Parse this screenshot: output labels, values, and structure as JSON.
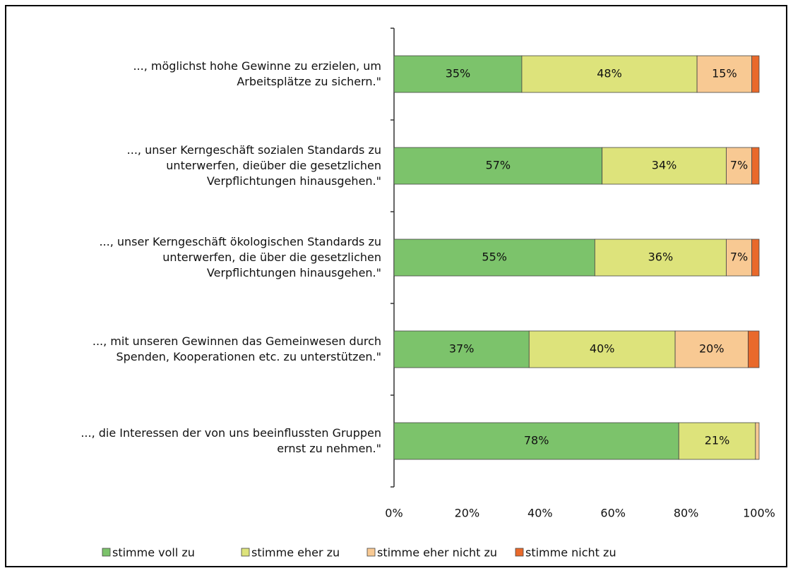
{
  "chart_data": {
    "type": "stacked_barh",
    "categories": [
      "..., möglichst hohe Gewinne zu erzielen, um\nArbeitsplätze zu sichern.\"",
      "..., unser Kerngeschäft sozialen Standards zu\nunterwerfen, dieüber die gesetzlichen\nVerpflichtungen hinausgehen.\"",
      "..., unser Kerngeschäft ökologischen Standards zu\nunterwerfen, die über die gesetzlichen\nVerpflichtungen hinausgehen.\"",
      "..., mit unseren Gewinnen das Gemeinwesen durch\nSpenden, Kooperationen etc. zu unterstützen.\"",
      "..., die Interessen der von uns beeinflussten Gruppen\nernst zu nehmen.\""
    ],
    "series": [
      {
        "name": "stimme voll zu",
        "color": "#7cc36b",
        "values": [
          35,
          57,
          55,
          37,
          78
        ],
        "value_labels": [
          "35%",
          "57%",
          "55%",
          "37%",
          "78%"
        ]
      },
      {
        "name": "stimme eher zu",
        "color": "#dde37b",
        "values": [
          48,
          34,
          36,
          40,
          21
        ],
        "value_labels": [
          "48%",
          "34%",
          "36%",
          "40%",
          "21%"
        ]
      },
      {
        "name": "stimme eher nicht zu",
        "color": "#f8c993",
        "values": [
          15,
          7,
          7,
          20,
          1
        ],
        "value_labels": [
          "15%",
          "7%",
          "7%",
          "20%",
          null
        ]
      },
      {
        "name": "stimme nicht zu",
        "color": "#e9692b",
        "values": [
          2,
          2,
          2,
          3,
          0
        ],
        "value_labels": [
          null,
          null,
          null,
          null,
          null
        ]
      }
    ],
    "xlim": [
      0,
      100
    ],
    "xticks": [
      {
        "value": 0,
        "label": "0%"
      },
      {
        "value": 20,
        "label": "20%"
      },
      {
        "value": 40,
        "label": "40%"
      },
      {
        "value": 60,
        "label": "60%"
      },
      {
        "value": 80,
        "label": "80%"
      },
      {
        "value": 100,
        "label": "100%"
      }
    ],
    "legend": "bottom"
  }
}
